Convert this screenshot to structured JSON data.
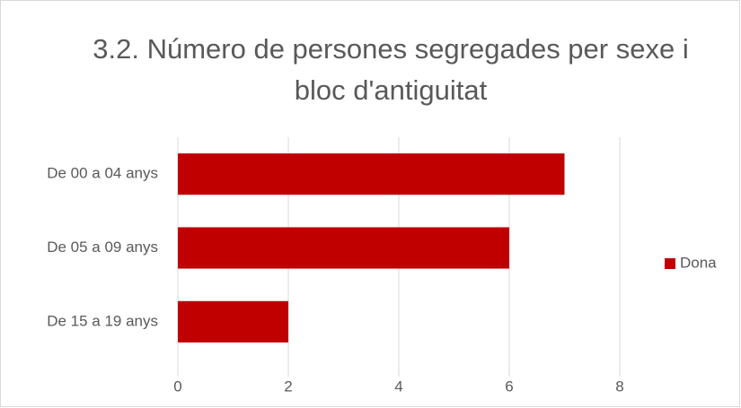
{
  "chart_data": {
    "type": "bar",
    "orientation": "horizontal",
    "title": "3.2. Número de persones segregades per sexe i bloc d'antiguitat",
    "categories": [
      "De 00 a 04 anys",
      "De 05 a 09 anys",
      "De 15 a 19 anys"
    ],
    "series": [
      {
        "name": "Dona",
        "color": "#c00000",
        "values": [
          7,
          6,
          2
        ]
      }
    ],
    "xlim": [
      0,
      8
    ],
    "xticks": [
      0,
      2,
      4,
      6,
      8
    ],
    "grid": true,
    "legend": "right"
  }
}
